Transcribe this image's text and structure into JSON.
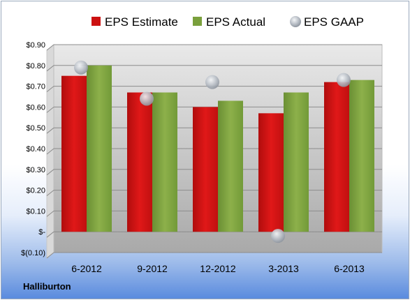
{
  "company": "Halliburton",
  "legend": [
    {
      "label": "EPS Estimate",
      "color": "#cc1111",
      "shape": "square"
    },
    {
      "label": "EPS Actual",
      "color": "#7aa03c",
      "shape": "square"
    },
    {
      "label": "EPS GAAP",
      "color": "#b9c0c9",
      "shape": "circle"
    }
  ],
  "chart_data": {
    "type": "bar",
    "categories": [
      "6-2012",
      "9-2012",
      "12-2012",
      "3-2013",
      "6-2013"
    ],
    "series": [
      {
        "name": "EPS Estimate",
        "type": "bar",
        "color": "#cc1111",
        "values": [
          0.75,
          0.67,
          0.6,
          0.57,
          0.72
        ]
      },
      {
        "name": "EPS Actual",
        "type": "bar",
        "color": "#7aa03c",
        "values": [
          0.8,
          0.67,
          0.63,
          0.67,
          0.73
        ]
      },
      {
        "name": "EPS GAAP",
        "type": "scatter",
        "color": "#b9c0c9",
        "values": [
          0.79,
          0.64,
          0.72,
          -0.02,
          0.73
        ]
      }
    ],
    "yticks": [
      "$0.90",
      "$0.80",
      "$0.70",
      "$0.60",
      "$0.50",
      "$0.40",
      "$0.30",
      "$0.20",
      "$0.10",
      "$-",
      "$(0.10)"
    ],
    "ylim": [
      -0.1,
      0.9
    ],
    "grid": true,
    "legend_position": "top"
  }
}
